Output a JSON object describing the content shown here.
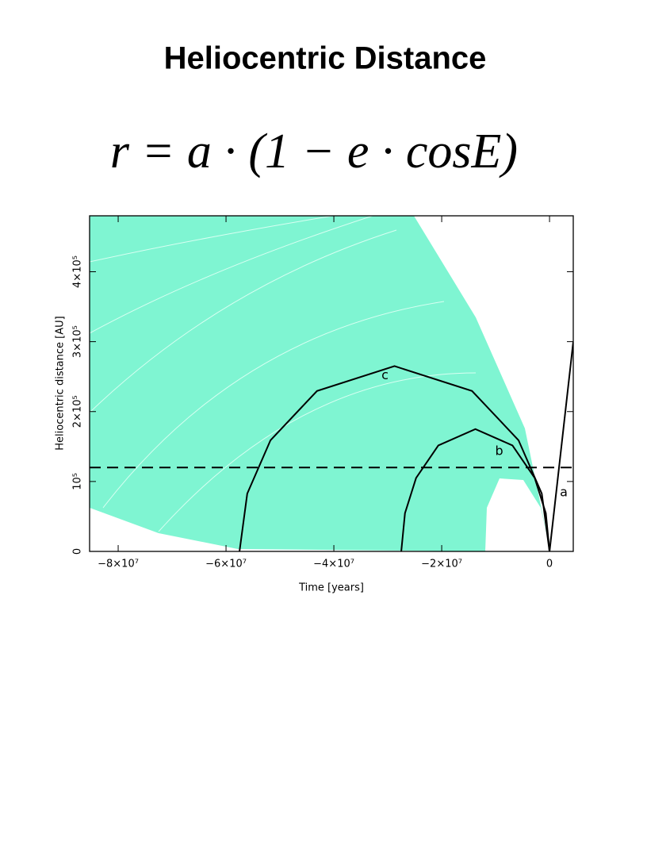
{
  "title": "Heliocentric Distance",
  "formula": "r = a · (1 − e · cosE)",
  "chart_data": {
    "type": "line",
    "xlabel": "Time [years]",
    "ylabel": "Heliocentric distance [AU]",
    "xlim": [
      -85300000,
      4400000
    ],
    "ylim": [
      0,
      480000
    ],
    "xticks": [
      {
        "value": -80000000,
        "label": "−8×10⁷"
      },
      {
        "value": -60000000,
        "label": "−6×10⁷"
      },
      {
        "value": -40000000,
        "label": "−4×10⁷"
      },
      {
        "value": -20000000,
        "label": "−2×10⁷"
      },
      0
    ],
    "yticks": [
      0,
      {
        "value": 100000,
        "label": "10⁵"
      },
      {
        "value": 200000,
        "label": "2×10⁵"
      },
      {
        "value": 300000,
        "label": "3×10⁵"
      },
      {
        "value": 400000,
        "label": "4×10⁵"
      }
    ],
    "hline": 120000,
    "series": [
      {
        "name": "a",
        "color": "#000000",
        "x": [
          0,
          4400000
        ],
        "values": [
          0,
          300000
        ]
      },
      {
        "name": "b",
        "color": "#000000",
        "x": [
          -27500000,
          -26810000,
          -24750000,
          -20625000,
          -13750000,
          -6875000,
          -2750000,
          -687500,
          0
        ],
        "values": [
          0,
          54600,
          105000,
          151600,
          175000,
          151600,
          105000,
          54600,
          0
        ]
      },
      {
        "name": "c",
        "color": "#000000",
        "x": [
          -57500000,
          -56060000,
          -51750000,
          -43125000,
          -28750000,
          -14375000,
          -5750000,
          -1437500,
          0
        ],
        "values": [
          0,
          82700,
          159000,
          229500,
          265000,
          229500,
          159000,
          82700,
          0
        ]
      }
    ]
  }
}
